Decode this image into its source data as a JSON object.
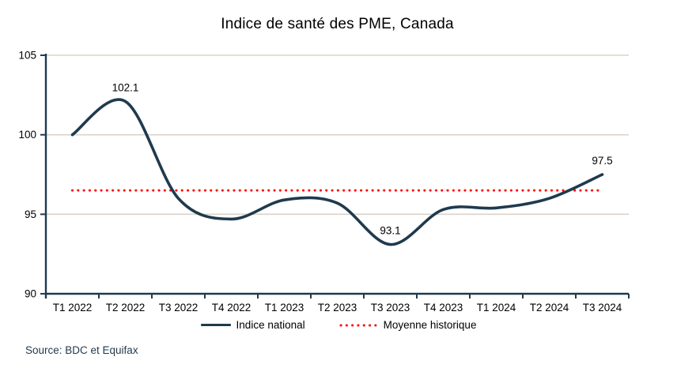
{
  "title": "Indice de santé des PME, Canada",
  "source_note": "Source: BDC et Equifax",
  "legend": {
    "items": [
      {
        "label": "Indice national",
        "swatch": "solid-line"
      },
      {
        "label": "Moyenne historique",
        "swatch": "dotted-line"
      }
    ]
  },
  "colors": {
    "series_line": "#1F3A4E",
    "reference_dotted": "#FF0000",
    "gridline": "#DBD3C9",
    "axis": "#1F3A4E",
    "text": "#000000",
    "source_text": "#1F3A4E",
    "background": "#FFFFFF"
  },
  "chart_data": {
    "type": "line",
    "title": "Indice de santé des PME, Canada",
    "categories": [
      "T1 2022",
      "T2 2022",
      "T3 2022",
      "T4 2022",
      "T1 2023",
      "T2 2023",
      "T3 2023",
      "T4 2023",
      "T1 2024",
      "T2 2024",
      "T3 2024"
    ],
    "series": [
      {
        "name": "Indice national",
        "values": [
          100.0,
          102.1,
          96.0,
          94.7,
          95.9,
          95.7,
          93.1,
          95.3,
          95.4,
          96.0,
          97.5
        ],
        "color": "#1F3A4E",
        "style": "smooth"
      }
    ],
    "reference_line": {
      "name": "Moyenne historique",
      "value": 96.5,
      "color": "#FF0000",
      "style": "dotted"
    },
    "point_labels": [
      {
        "index": 1,
        "text": "102.1"
      },
      {
        "index": 6,
        "text": "93.1"
      },
      {
        "index": 10,
        "text": "97.5"
      }
    ],
    "xlabel": "",
    "ylabel": "",
    "ylim": [
      90,
      105
    ],
    "yticks": [
      90,
      95,
      100,
      105
    ],
    "grid": "horizontal",
    "legend_position": "bottom"
  }
}
